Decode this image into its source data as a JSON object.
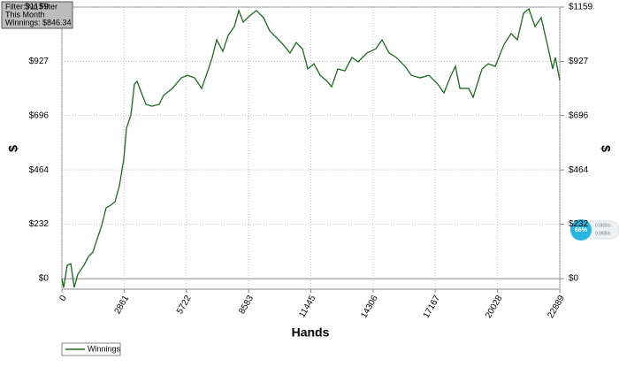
{
  "chart_data": {
    "type": "line",
    "annotations": [
      "Filter: No Filter",
      "This Month",
      "Winnings: $846.34"
    ],
    "xlabel": "Hands",
    "ylabel": "$",
    "y2label": "$",
    "x": [
      0,
      81,
      244,
      407,
      569,
      732,
      1016,
      1220,
      1423,
      1626,
      1830,
      2033,
      2236,
      2440,
      2643,
      2846,
      2968,
      3172,
      3334,
      3456,
      3659,
      3863,
      4147,
      4473,
      4676,
      5083,
      5489,
      5774,
      6099,
      6425,
      6709,
      6912,
      7116,
      7400,
      7644,
      7929,
      8132,
      8335,
      8620,
      8945,
      9270,
      9555,
      9839,
      10165,
      10490,
      10775,
      11060,
      11304,
      11588,
      11873,
      12198,
      12401,
      12686,
      13011,
      13336,
      13621,
      14027,
      14434,
      14719,
      15044,
      15369,
      15776,
      16061,
      16467,
      16874,
      17280,
      17565,
      17890,
      18093,
      18297,
      18704,
      18907,
      19314,
      19598,
      19923,
      20330,
      20655,
      20940,
      21224,
      21468,
      21753,
      22037,
      22362,
      22565,
      22687,
      22889
    ],
    "series": [
      {
        "name": "Winnings",
        "color": "#1a6b1a",
        "values": [
          0,
          -38,
          57,
          64,
          -38,
          19,
          57,
          94,
          113,
          170,
          227,
          302,
          313,
          328,
          396,
          510,
          642,
          698,
          830,
          842,
          793,
          744,
          736,
          744,
          782,
          812,
          857,
          868,
          857,
          812,
          887,
          944,
          1019,
          970,
          1038,
          1076,
          1144,
          1095,
          1121,
          1144,
          1114,
          1057,
          1031,
          1000,
          963,
          1008,
          981,
          895,
          917,
          868,
          842,
          819,
          895,
          887,
          944,
          925,
          963,
          981,
          1019,
          963,
          944,
          906,
          868,
          857,
          868,
          830,
          793,
          868,
          906,
          812,
          812,
          774,
          895,
          917,
          906,
          1000,
          1046,
          1019,
          1133,
          1151,
          1076,
          1114,
          981,
          895,
          944,
          846.34
        ]
      }
    ],
    "xlim": [
      0,
      22889
    ],
    "xticks": [
      0,
      2861,
      5722,
      8583,
      11445,
      14306,
      17167,
      20028,
      22889
    ],
    "ylim": [
      -45,
      1159
    ],
    "yticks": [
      {
        "value": 0,
        "label": "$0"
      },
      {
        "value": 232,
        "label": "$232"
      },
      {
        "value": 464,
        "label": "$464"
      },
      {
        "value": 696,
        "label": "$696"
      },
      {
        "value": 927,
        "label": "$927"
      },
      {
        "value": 1159,
        "label": "$1159"
      }
    ],
    "y2lim": [
      -45,
      1159
    ],
    "y2ticks": [
      {
        "value": 0,
        "label": "$0"
      },
      {
        "value": 232,
        "label": "$232"
      },
      {
        "value": 464,
        "label": "$464"
      },
      {
        "value": 696,
        "label": "$696"
      },
      {
        "value": 927,
        "label": "$927"
      },
      {
        "value": 1159,
        "label": "$1159"
      }
    ],
    "grid": true,
    "legend": "bottom-left"
  },
  "overlay": {
    "percent": "66%",
    "upload": "0.0KB/s",
    "download": "0.0KB/s"
  }
}
